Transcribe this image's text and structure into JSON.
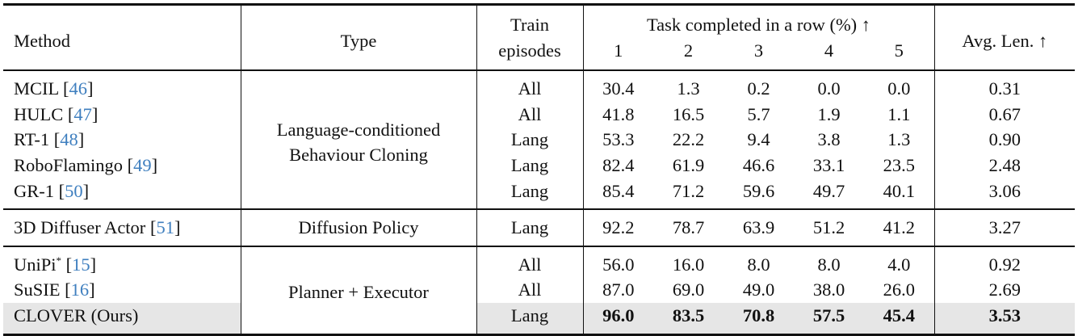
{
  "header": {
    "method": "Method",
    "type": "Type",
    "train_line1": "Train",
    "train_line2": "episodes",
    "task_group": "Task completed in a row (%) ↑",
    "task_cols": [
      "1",
      "2",
      "3",
      "4",
      "5"
    ],
    "avg_len": "Avg. Len. ↑"
  },
  "colors": {
    "citation": "#3f7fbf",
    "highlight_row": "#e6e6e6"
  },
  "groups": [
    {
      "type_line1": "Language-conditioned",
      "type_line2": "Behaviour Cloning",
      "rows": [
        {
          "method": "MCIL",
          "sup": "",
          "cite": "46",
          "train": "All",
          "tasks": [
            "30.4",
            "1.3",
            "0.2",
            "0.0",
            "0.0"
          ],
          "avg": "0.31"
        },
        {
          "method": "HULC",
          "sup": "",
          "cite": "47",
          "train": "All",
          "tasks": [
            "41.8",
            "16.5",
            "5.7",
            "1.9",
            "1.1"
          ],
          "avg": "0.67"
        },
        {
          "method": "RT-1",
          "sup": "",
          "cite": "48",
          "train": "Lang",
          "tasks": [
            "53.3",
            "22.2",
            "9.4",
            "3.8",
            "1.3"
          ],
          "avg": "0.90"
        },
        {
          "method": "RoboFlamingo",
          "sup": "",
          "cite": "49",
          "train": "Lang",
          "tasks": [
            "82.4",
            "61.9",
            "46.6",
            "33.1",
            "23.5"
          ],
          "avg": "2.48"
        },
        {
          "method": "GR-1",
          "sup": "",
          "cite": "50",
          "train": "Lang",
          "tasks": [
            "85.4",
            "71.2",
            "59.6",
            "49.7",
            "40.1"
          ],
          "avg": "3.06"
        }
      ]
    },
    {
      "type_line1": "Diffusion Policy",
      "type_line2": "",
      "rows": [
        {
          "method": "3D Diffuser Actor",
          "sup": "",
          "cite": "51",
          "train": "Lang",
          "tasks": [
            "92.2",
            "78.7",
            "63.9",
            "51.2",
            "41.2"
          ],
          "avg": "3.27"
        }
      ]
    },
    {
      "type_line1": "Planner + Executor",
      "type_line2": "",
      "rows": [
        {
          "method": "UniPi",
          "sup": "*",
          "cite": "15",
          "train": "All",
          "tasks": [
            "56.0",
            "16.0",
            "8.0",
            "8.0",
            "4.0"
          ],
          "avg": "0.92"
        },
        {
          "method": "SuSIE",
          "sup": "",
          "cite": "16",
          "train": "All",
          "tasks": [
            "87.0",
            "69.0",
            "49.0",
            "38.0",
            "26.0"
          ],
          "avg": "2.69"
        },
        {
          "method": "CLOVER (Ours)",
          "sup": "",
          "cite": "",
          "train": "Lang",
          "tasks": [
            "96.0",
            "83.5",
            "70.8",
            "57.5",
            "45.4"
          ],
          "avg": "3.53",
          "highlight": true,
          "bold": true
        }
      ]
    }
  ]
}
